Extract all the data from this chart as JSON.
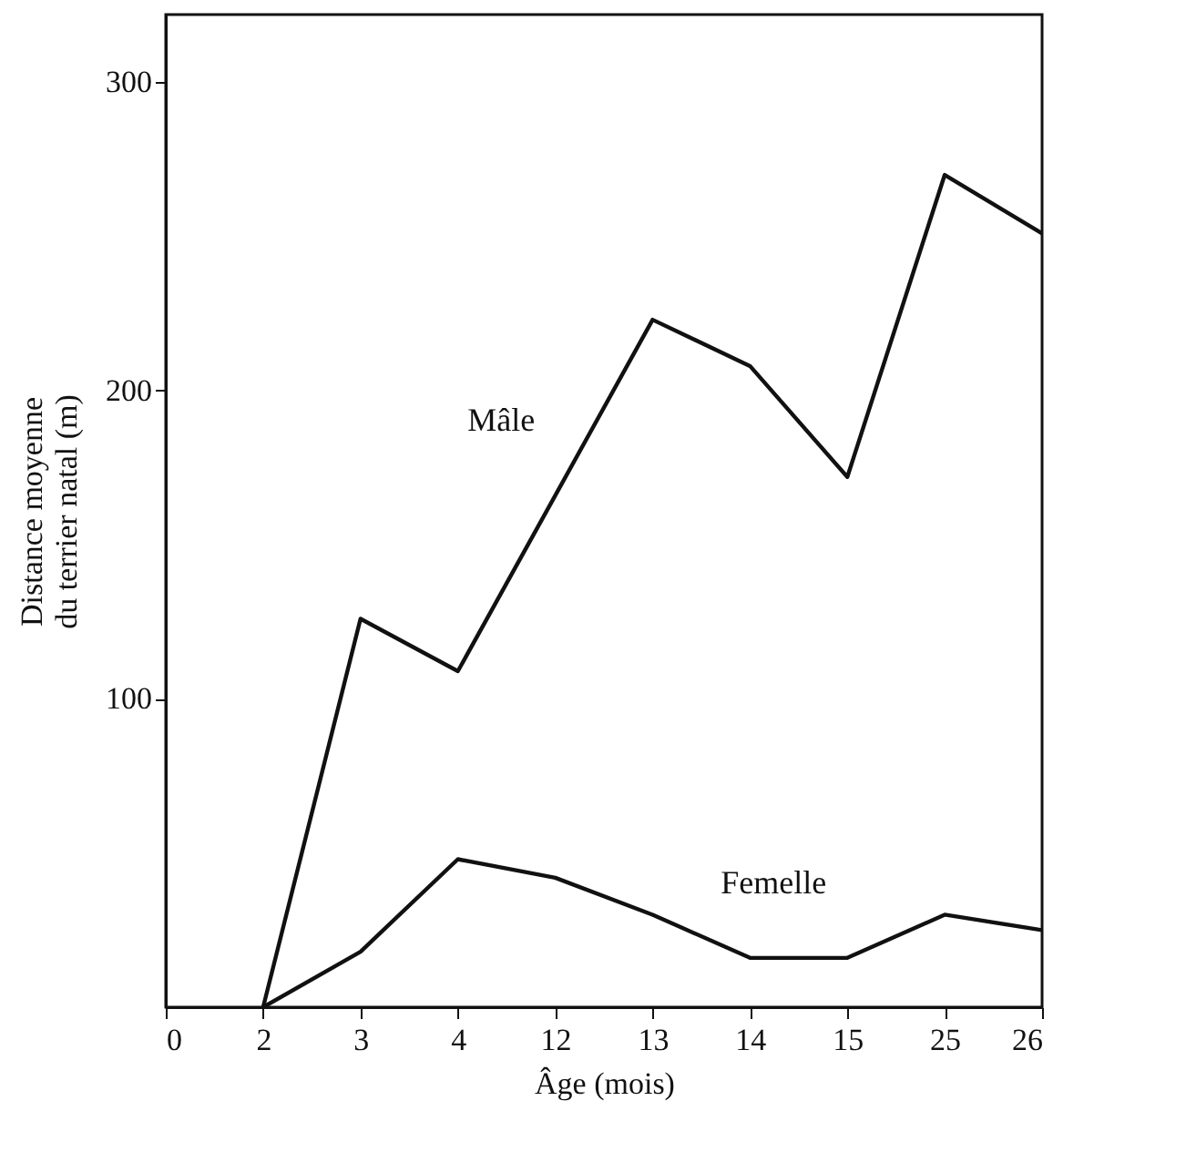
{
  "chart_data": {
    "type": "line",
    "xlabel": "Âge (mois)",
    "ylabel": "Distance moyenne\ndu terrier natal (m)",
    "categories": [
      "0",
      "2",
      "3",
      "4",
      "12",
      "13",
      "14",
      "15",
      "25",
      "26"
    ],
    "series": [
      {
        "name": "Mâle",
        "color": "#111111",
        "values": [
          null,
          0,
          126,
          109,
          166,
          223,
          208,
          172,
          270,
          251
        ]
      },
      {
        "name": "Femelle",
        "color": "#111111",
        "values": [
          null,
          0,
          18,
          48,
          42,
          30,
          16,
          16,
          30,
          25
        ]
      }
    ],
    "ylim": [
      0,
      322
    ],
    "yticks": [
      100,
      200,
      300
    ],
    "grid": false,
    "legend": false,
    "marker": "none",
    "line_style": "solid"
  }
}
